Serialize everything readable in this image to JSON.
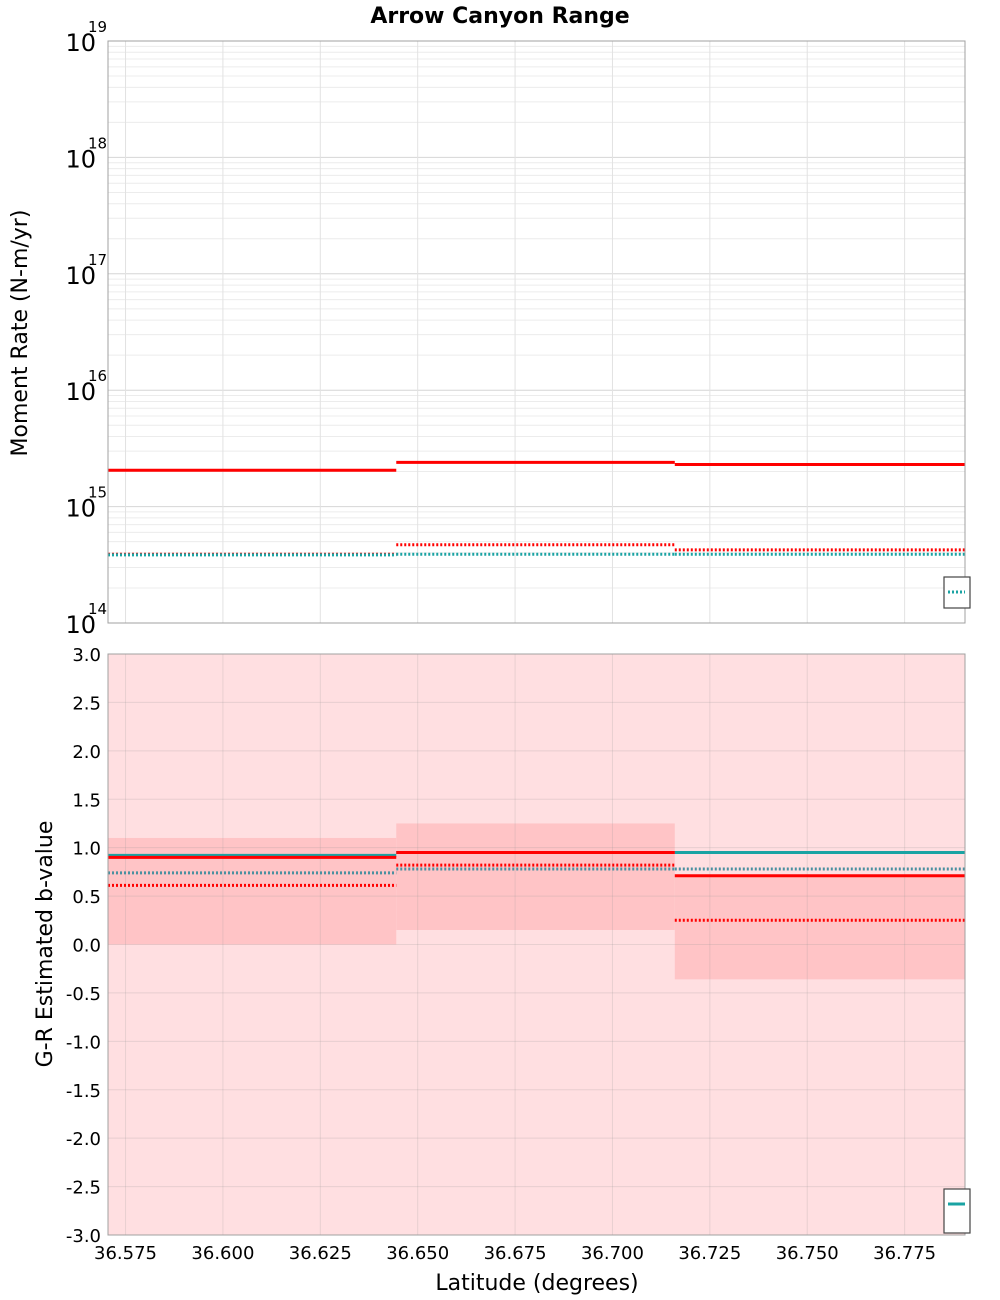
{
  "chart_data": [
    {
      "type": "line",
      "panel": "top",
      "title": "Arrow Canyon Range",
      "xlabel": "",
      "ylabel": "Moment Rate (N-m/yr)",
      "yscale": "log",
      "xlim": [
        36.5705,
        36.7905
      ],
      "ylim": [
        100000000000000.0,
        1e+19
      ],
      "grid": true,
      "legend_position": "bottom-right",
      "y_ticks": [
        {
          "base": "10",
          "exp": "14",
          "value": 100000000000000.0
        },
        {
          "base": "10",
          "exp": "15",
          "value": 1000000000000000.0
        },
        {
          "base": "10",
          "exp": "16",
          "value": 1e+16
        },
        {
          "base": "10",
          "exp": "17",
          "value": 1e+17
        },
        {
          "base": "10",
          "exp": "18",
          "value": 1e+18
        },
        {
          "base": "10",
          "exp": "19",
          "value": 1e+19
        }
      ],
      "series": [
        {
          "name": "red-solid",
          "color": "#ff0000",
          "style": "solid",
          "segments": [
            [
              36.5705,
              36.6445,
              2050000000000000.0
            ],
            [
              36.6445,
              36.716,
              2400000000000000.0
            ],
            [
              36.716,
              36.7905,
              2300000000000000.0
            ]
          ]
        },
        {
          "name": "red-dotted",
          "color": "#ff0000",
          "style": "dotted",
          "segments": [
            [
              36.5705,
              36.6445,
              390000000000000.0
            ],
            [
              36.6445,
              36.716,
              470000000000000.0
            ],
            [
              36.716,
              36.7905,
              425000000000000.0
            ]
          ]
        },
        {
          "name": "teal-dotted",
          "color": "#1aa3a3",
          "style": "dotted",
          "segments": [
            [
              36.5705,
              36.6445,
              385000000000000.0
            ],
            [
              36.6445,
              36.716,
              390000000000000.0
            ],
            [
              36.716,
              36.7905,
              390000000000000.0
            ]
          ]
        }
      ]
    },
    {
      "type": "line",
      "panel": "bottom",
      "xlabel": "Latitude (degrees)",
      "ylabel": "G-R Estimated b-value",
      "xlim": [
        36.5705,
        36.7905
      ],
      "ylim": [
        -3.0,
        3.0
      ],
      "grid": true,
      "legend_position": "bottom-right",
      "x_ticks": [
        "36.575",
        "36.600",
        "36.625",
        "36.650",
        "36.675",
        "36.700",
        "36.725",
        "36.750",
        "36.775"
      ],
      "x_tick_values": [
        36.575,
        36.6,
        36.625,
        36.65,
        36.675,
        36.7,
        36.725,
        36.75,
        36.775
      ],
      "y_ticks": [
        "-3.0",
        "-2.5",
        "-2.0",
        "-1.5",
        "-1.0",
        "-0.5",
        "0.0",
        "0.5",
        "1.0",
        "1.5",
        "2.0",
        "2.5",
        "3.0"
      ],
      "y_tick_values": [
        -3.0,
        -2.5,
        -2.0,
        -1.5,
        -1.0,
        -0.5,
        0.0,
        0.5,
        1.0,
        1.5,
        2.0,
        2.5,
        3.0
      ],
      "background_band": {
        "color": "#ffdfe1",
        "y0": -3.0,
        "y1": 3.0
      },
      "confidence_bands": [
        {
          "x0": 36.5705,
          "x1": 36.6445,
          "y0": 0.0,
          "y1": 1.1,
          "color": "#ffc4c6"
        },
        {
          "x0": 36.6445,
          "x1": 36.716,
          "y0": 0.15,
          "y1": 1.25,
          "color": "#ffc4c6"
        },
        {
          "x0": 36.716,
          "x1": 36.7905,
          "y0": -0.36,
          "y1": 0.72,
          "color": "#ffc4c6"
        }
      ],
      "series": [
        {
          "name": "teal-solid",
          "color": "#1aa3a3",
          "style": "solid",
          "segments": [
            [
              36.5705,
              36.6445,
              0.92
            ],
            [
              36.6445,
              36.716,
              0.95
            ],
            [
              36.716,
              36.7905,
              0.95
            ]
          ]
        },
        {
          "name": "red-solid",
          "color": "#ff0000",
          "style": "solid",
          "segments": [
            [
              36.5705,
              36.6445,
              0.9
            ],
            [
              36.6445,
              36.716,
              0.95
            ],
            [
              36.716,
              36.7905,
              0.71
            ]
          ]
        },
        {
          "name": "red-dotted",
          "color": "#ff0000",
          "style": "dotted",
          "segments": [
            [
              36.5705,
              36.6445,
              0.61
            ],
            [
              36.6445,
              36.716,
              0.82
            ],
            [
              36.716,
              36.7905,
              0.25
            ]
          ]
        },
        {
          "name": "teal-dotted",
          "color": "#4a90a0",
          "style": "dotted",
          "segments": [
            [
              36.5705,
              36.6445,
              0.74
            ],
            [
              36.6445,
              36.716,
              0.78
            ],
            [
              36.716,
              36.7905,
              0.78
            ]
          ]
        }
      ]
    }
  ]
}
